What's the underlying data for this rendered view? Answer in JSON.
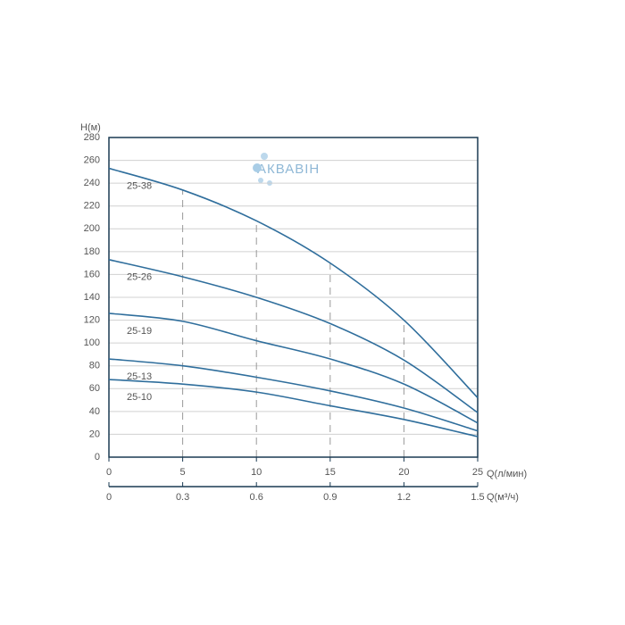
{
  "chart_data": {
    "type": "line",
    "y_label": "H(м)",
    "x_label": "Q(л/мин)",
    "x2_label": "Q(м³/ч)",
    "watermark": "АКВАВІН",
    "x": [
      0,
      5,
      10,
      15,
      20,
      25
    ],
    "series": [
      {
        "name": "25-38",
        "color": "#2f6e9c",
        "values": [
          253,
          234,
          207,
          170,
          120,
          52
        ]
      },
      {
        "name": "25-26",
        "color": "#2f6e9c",
        "values": [
          173,
          158,
          140,
          117,
          85,
          39
        ]
      },
      {
        "name": "25-19",
        "color": "#2f6e9c",
        "values": [
          126,
          119,
          102,
          86,
          64,
          30
        ]
      },
      {
        "name": "25-13",
        "color": "#2f6e9c",
        "values": [
          86,
          80,
          70,
          58,
          43,
          23
        ]
      },
      {
        "name": "25-10",
        "color": "#2f6e9c",
        "values": [
          68,
          64,
          57,
          45,
          33,
          18
        ]
      }
    ],
    "xlim": [
      0,
      25
    ],
    "xticks": [
      0,
      5,
      10,
      15,
      20,
      25
    ],
    "x2lim": [
      0,
      1.5
    ],
    "x2ticks": [
      0,
      0.3,
      0.6,
      0.9,
      1.2,
      1.5
    ],
    "ylim": [
      0,
      280
    ],
    "yticks": [
      0,
      20,
      40,
      60,
      80,
      100,
      120,
      140,
      160,
      180,
      200,
      220,
      240,
      260,
      280
    ],
    "grid": true
  }
}
